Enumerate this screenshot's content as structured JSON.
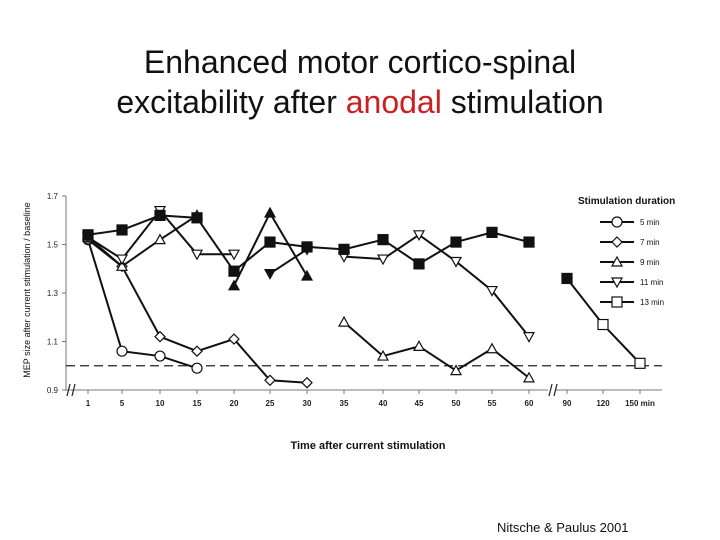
{
  "title": {
    "line1": "Enhanced motor cortico-spinal",
    "line2_before": "excitability after ",
    "line2_highlight": "anodal",
    "line2_after": " stimulation",
    "highlight_color": "#cc1f1f"
  },
  "citation": "Nitsche & Paulus 2001",
  "chart_data": {
    "type": "line",
    "xlabel": "Time after current stimulation",
    "ylabel": "MEP size after current stimulation / baseline",
    "categories": [
      "1",
      "5",
      "10",
      "15",
      "20",
      "25",
      "30",
      "35",
      "40",
      "45",
      "50",
      "55",
      "60",
      "90",
      "120",
      "150 min"
    ],
    "y_ticks": [
      "0.9",
      "1.1",
      "1.3",
      "1.5",
      "1.7"
    ],
    "ylim": [
      0.9,
      1.7
    ],
    "axis_breaks": [
      "between 1 and baseline start",
      "between 60 and 90"
    ],
    "baseline_reference": 1.0,
    "legend_title": "Stimulation duration",
    "series": [
      {
        "name": "5 min",
        "marker": "circle",
        "values": [
          1.52,
          1.06,
          1.04,
          0.99,
          null,
          null,
          null,
          null,
          null,
          null,
          null,
          null,
          null,
          null,
          null,
          null
        ]
      },
      {
        "name": "7 min",
        "marker": "diamond",
        "values": [
          1.52,
          1.41,
          1.12,
          1.06,
          1.11,
          0.94,
          0.93,
          null,
          null,
          null,
          null,
          null,
          null,
          null,
          null,
          null
        ]
      },
      {
        "name": "9 min",
        "marker": "triangle-up",
        "values": [
          1.53,
          1.41,
          1.52,
          1.62,
          null,
          null,
          null,
          1.18,
          1.04,
          1.08,
          0.98,
          1.07,
          0.95,
          null,
          null,
          null
        ]
      },
      {
        "name": "11 min",
        "marker": "triangle-down",
        "values": [
          1.53,
          1.44,
          1.64,
          1.46,
          1.46,
          null,
          null,
          1.45,
          1.44,
          1.54,
          1.43,
          1.31,
          1.12,
          null,
          null,
          null
        ]
      },
      {
        "name": "13 min",
        "marker": "square",
        "values": [
          1.54,
          1.56,
          1.62,
          1.61,
          1.39,
          1.51,
          1.49,
          1.48,
          1.52,
          1.42,
          1.51,
          1.55,
          1.51,
          1.36,
          1.17,
          1.01
        ]
      },
      {
        "name": "9 min filled",
        "marker": "triangle-up-filled",
        "legend": false,
        "values": [
          null,
          null,
          null,
          null,
          1.33,
          1.63,
          1.37,
          null,
          null,
          null,
          null,
          null,
          null,
          null,
          null,
          null
        ]
      },
      {
        "name": "11 min filled",
        "marker": "triangle-down-filled",
        "legend": false,
        "values": [
          null,
          null,
          null,
          null,
          null,
          1.38,
          1.48,
          null,
          null,
          null,
          null,
          null,
          null,
          null,
          null,
          null
        ]
      }
    ]
  }
}
